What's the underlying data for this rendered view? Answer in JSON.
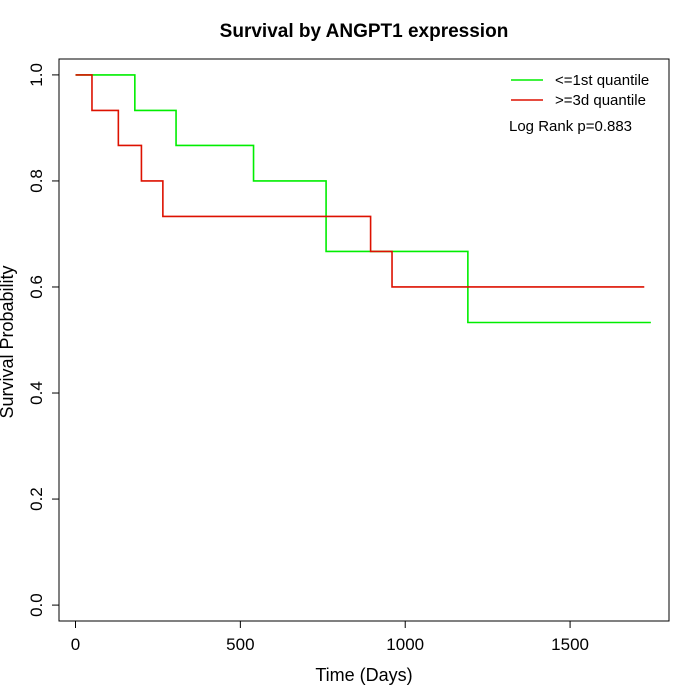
{
  "chart_data": {
    "type": "line",
    "title": "Survival by ANGPT1 expression",
    "xlabel": "Time (Days)",
    "ylabel": "Survival Probability",
    "xlim": [
      -50,
      1800
    ],
    "ylim": [
      -0.03,
      1.03
    ],
    "x_ticks": [
      0,
      500,
      1000,
      1500
    ],
    "x_tick_labels": [
      "0",
      "500",
      "1000",
      "1500"
    ],
    "y_ticks": [
      0.0,
      0.2,
      0.4,
      0.6,
      0.8,
      1.0
    ],
    "y_tick_labels": [
      "0.0",
      "0.2",
      "0.4",
      "0.6",
      "0.8",
      "1.0"
    ],
    "grid": false,
    "legend_position": "top-right",
    "annotation": "Log Rank p=0.883",
    "series": [
      {
        "name": "<=1st quantile",
        "color": "#00ee00",
        "step": true,
        "points": [
          [
            0,
            1.0
          ],
          [
            180,
            0.933
          ],
          [
            305,
            0.867
          ],
          [
            540,
            0.8
          ],
          [
            760,
            0.667
          ],
          [
            1190,
            0.533
          ],
          [
            1745,
            0.533
          ]
        ]
      },
      {
        "name": ">=3d quantile",
        "color": "#dd1100",
        "step": true,
        "points": [
          [
            0,
            1.0
          ],
          [
            50,
            0.933
          ],
          [
            130,
            0.867
          ],
          [
            200,
            0.8
          ],
          [
            265,
            0.733
          ],
          [
            895,
            0.667
          ],
          [
            960,
            0.6
          ],
          [
            1725,
            0.6
          ]
        ]
      }
    ]
  }
}
